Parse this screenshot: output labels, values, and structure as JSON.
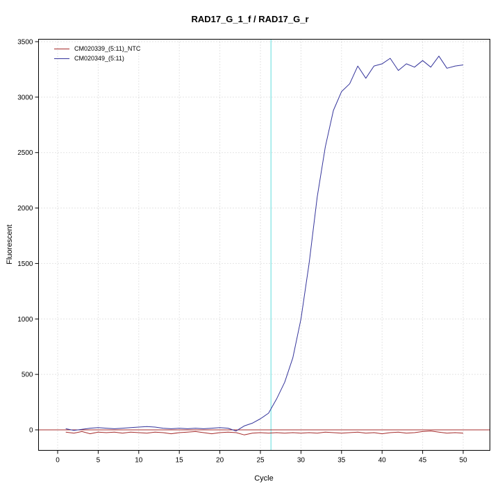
{
  "chart_data": {
    "type": "line",
    "title": "RAD17_G_1_f / RAD17_G_r",
    "xlabel": "Cycle",
    "ylabel": "Fluorescent",
    "x_ticks": [
      0,
      5,
      10,
      15,
      20,
      25,
      30,
      35,
      40,
      45,
      50
    ],
    "y_ticks": [
      0,
      500,
      1000,
      1500,
      2000,
      2500,
      3000,
      3500
    ],
    "xlim": [
      -2.4,
      53.3
    ],
    "ylim": [
      -120,
      3560
    ],
    "grid": "dotted",
    "grid_color": "#c8c8c8",
    "x": [
      1,
      2,
      3,
      4,
      5,
      6,
      7,
      8,
      9,
      10,
      11,
      12,
      13,
      14,
      15,
      16,
      17,
      18,
      19,
      20,
      21,
      22,
      23,
      24,
      25,
      26,
      27,
      28,
      29,
      30,
      31,
      32,
      33,
      34,
      35,
      36,
      37,
      38,
      39,
      40,
      41,
      42,
      43,
      44,
      45,
      46,
      47,
      48,
      49,
      50
    ],
    "series": [
      {
        "name": "CM020339_(5:11)_NTC",
        "color": "#A52A2A",
        "values": [
          -20,
          -30,
          -15,
          -35,
          -20,
          -25,
          -20,
          -30,
          -20,
          -25,
          -30,
          -20,
          -25,
          -35,
          -25,
          -20,
          -15,
          -25,
          -35,
          -25,
          -20,
          -25,
          -45,
          -30,
          -25,
          -30,
          -25,
          -30,
          -25,
          -30,
          -25,
          -30,
          -20,
          -25,
          -30,
          -25,
          -20,
          -30,
          -25,
          -35,
          -25,
          -20,
          -30,
          -25,
          -15,
          -10,
          -20,
          -30,
          -25,
          -30
        ]
      },
      {
        "name": "CM020349_(5:11)",
        "color": "#34349B",
        "values": [
          10,
          -5,
          5,
          15,
          20,
          15,
          10,
          15,
          20,
          25,
          30,
          25,
          15,
          10,
          15,
          10,
          15,
          10,
          15,
          20,
          15,
          -10,
          35,
          60,
          100,
          150,
          280,
          430,
          650,
          1000,
          1500,
          2100,
          2550,
          2880,
          3050,
          3120,
          3280,
          3170,
          3280,
          3300,
          3350,
          3240,
          3300,
          3270,
          3330,
          3270,
          3370,
          3260,
          3280,
          3290
        ]
      }
    ],
    "threshold_line": {
      "y": 0,
      "color": "#A52A2A"
    },
    "ct_line": {
      "x": 26.3,
      "color": "#5FDEDE"
    },
    "legend": {
      "position": "top-left",
      "entries": [
        {
          "label": "CM020339_(5:11)_NTC",
          "color": "#A52A2A"
        },
        {
          "label": "CM020349_(5:11)",
          "color": "#34349B"
        }
      ]
    }
  }
}
